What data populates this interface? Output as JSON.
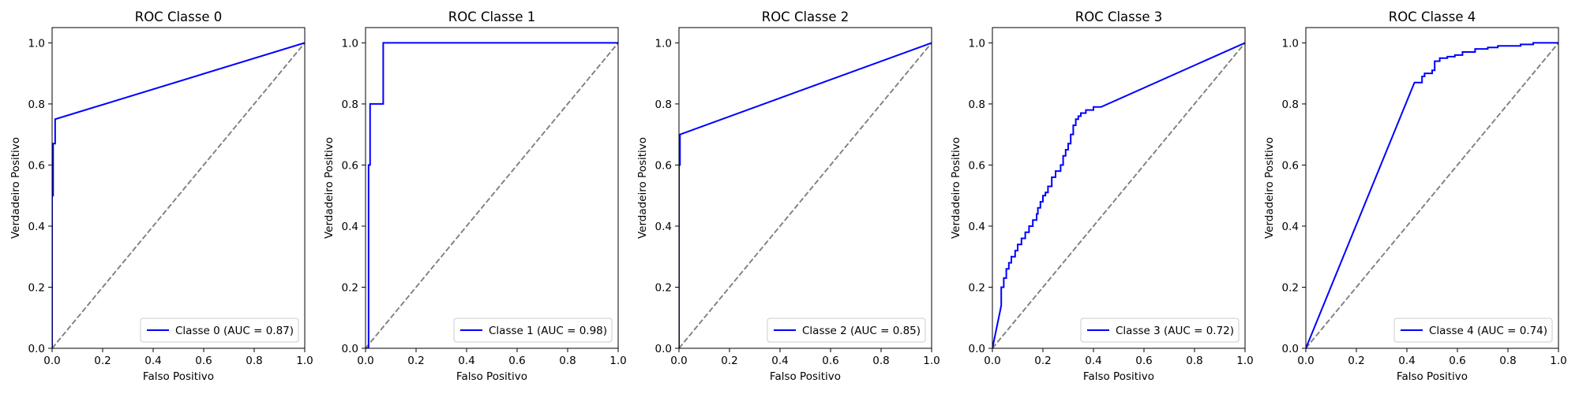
{
  "chart_data": [
    {
      "type": "line",
      "title": "ROC Classe 0",
      "xlabel": "Falso Positivo",
      "ylabel": "Verdadeiro Positivo",
      "xlim": [
        0,
        1
      ],
      "ylim": [
        0,
        1.05
      ],
      "xticks": [
        "0.0",
        "0.2",
        "0.4",
        "0.6",
        "0.8",
        "1.0"
      ],
      "yticks": [
        "0.0",
        "0.2",
        "0.4",
        "0.6",
        "0.8",
        "1.0"
      ],
      "grid": false,
      "legend_position": "lower-right",
      "series": [
        {
          "name": "Classe 0 (AUC = 0.87)",
          "color": "#0000ff",
          "x": [
            0.0,
            0.0,
            0.004,
            0.004,
            0.012,
            0.012,
            1.0
          ],
          "y": [
            0.0,
            0.5,
            0.5,
            0.67,
            0.67,
            0.75,
            1.0
          ]
        },
        {
          "name": "",
          "color": "#808080",
          "style": "dashed",
          "x": [
            0,
            1
          ],
          "y": [
            0,
            1
          ]
        }
      ]
    },
    {
      "type": "line",
      "title": "ROC Classe 1",
      "xlabel": "Falso Positivo",
      "ylabel": "Verdadeiro Positivo",
      "xlim": [
        0,
        1
      ],
      "ylim": [
        0,
        1.05
      ],
      "xticks": [
        "0.0",
        "0.2",
        "0.4",
        "0.6",
        "0.8",
        "1.0"
      ],
      "yticks": [
        "0.0",
        "0.2",
        "0.4",
        "0.6",
        "0.8",
        "1.0"
      ],
      "grid": false,
      "legend_position": "lower-right",
      "series": [
        {
          "name": "Classe 1 (AUC = 0.98)",
          "color": "#0000ff",
          "x": [
            0.0,
            0.0,
            0.012,
            0.012,
            0.018,
            0.018,
            0.07,
            0.07,
            1.0
          ],
          "y": [
            0.0,
            0.0,
            0.0,
            0.6,
            0.6,
            0.8,
            0.8,
            1.0,
            1.0
          ]
        },
        {
          "name": "",
          "color": "#808080",
          "style": "dashed",
          "x": [
            0,
            1
          ],
          "y": [
            0,
            1
          ]
        }
      ]
    },
    {
      "type": "line",
      "title": "ROC Classe 2",
      "xlabel": "Falso Positivo",
      "ylabel": "Verdadeiro Positivo",
      "xlim": [
        0,
        1
      ],
      "ylim": [
        0,
        1.05
      ],
      "xticks": [
        "0.0",
        "0.2",
        "0.4",
        "0.6",
        "0.8",
        "1.0"
      ],
      "yticks": [
        "0.0",
        "0.2",
        "0.4",
        "0.6",
        "0.8",
        "1.0"
      ],
      "grid": false,
      "legend_position": "lower-right",
      "series": [
        {
          "name": "Classe 2 (AUC = 0.85)",
          "color": "#0000ff",
          "x": [
            0.0,
            0.0,
            0.004,
            0.004,
            1.0
          ],
          "y": [
            0.0,
            0.6,
            0.6,
            0.7,
            1.0
          ]
        },
        {
          "name": "",
          "color": "#808080",
          "style": "dashed",
          "x": [
            0,
            1
          ],
          "y": [
            0,
            1
          ]
        }
      ]
    },
    {
      "type": "line",
      "title": "ROC Classe 3",
      "xlabel": "Falso Positivo",
      "ylabel": "Verdadeiro Positivo",
      "xlim": [
        0,
        1
      ],
      "ylim": [
        0,
        1.05
      ],
      "xticks": [
        "0.0",
        "0.2",
        "0.4",
        "0.6",
        "0.8",
        "1.0"
      ],
      "yticks": [
        "0.0",
        "0.2",
        "0.4",
        "0.6",
        "0.8",
        "1.0"
      ],
      "grid": false,
      "legend_position": "lower-right",
      "series": [
        {
          "name": "Classe 3 (AUC = 0.72)",
          "color": "#0000ff",
          "x": [
            0.0,
            0.035,
            0.035,
            0.045,
            0.045,
            0.055,
            0.055,
            0.065,
            0.065,
            0.075,
            0.075,
            0.09,
            0.09,
            0.1,
            0.1,
            0.115,
            0.115,
            0.13,
            0.13,
            0.145,
            0.145,
            0.16,
            0.16,
            0.175,
            0.175,
            0.18,
            0.18,
            0.19,
            0.19,
            0.2,
            0.2,
            0.21,
            0.21,
            0.22,
            0.22,
            0.235,
            0.235,
            0.25,
            0.25,
            0.27,
            0.27,
            0.28,
            0.28,
            0.29,
            0.29,
            0.3,
            0.3,
            0.31,
            0.31,
            0.32,
            0.32,
            0.33,
            0.33,
            0.34,
            0.34,
            0.35,
            0.35,
            0.37,
            0.37,
            0.4,
            0.4,
            0.43,
            0.43,
            1.0
          ],
          "y": [
            0.0,
            0.14,
            0.2,
            0.2,
            0.23,
            0.23,
            0.26,
            0.26,
            0.28,
            0.28,
            0.3,
            0.3,
            0.32,
            0.32,
            0.34,
            0.34,
            0.36,
            0.36,
            0.38,
            0.38,
            0.4,
            0.4,
            0.42,
            0.42,
            0.44,
            0.44,
            0.46,
            0.46,
            0.48,
            0.48,
            0.5,
            0.5,
            0.51,
            0.51,
            0.53,
            0.53,
            0.56,
            0.56,
            0.58,
            0.58,
            0.6,
            0.6,
            0.63,
            0.63,
            0.65,
            0.65,
            0.67,
            0.67,
            0.7,
            0.7,
            0.73,
            0.73,
            0.75,
            0.75,
            0.76,
            0.76,
            0.77,
            0.77,
            0.78,
            0.78,
            0.79,
            0.79,
            0.79,
            1.0
          ]
        },
        {
          "name": "",
          "color": "#808080",
          "style": "dashed",
          "x": [
            0,
            1
          ],
          "y": [
            0,
            1
          ]
        }
      ]
    },
    {
      "type": "line",
      "title": "ROC Classe 4",
      "xlabel": "Falso Positivo",
      "ylabel": "Verdadeiro Positivo",
      "xlim": [
        0,
        1
      ],
      "ylim": [
        0,
        1.05
      ],
      "xticks": [
        "0.0",
        "0.2",
        "0.4",
        "0.6",
        "0.8",
        "1.0"
      ],
      "yticks": [
        "0.0",
        "0.2",
        "0.4",
        "0.6",
        "0.8",
        "1.0"
      ],
      "grid": false,
      "legend_position": "lower-right",
      "series": [
        {
          "name": "Classe 4 (AUC = 0.74)",
          "color": "#0000ff",
          "x": [
            0.0,
            0.43,
            0.43,
            0.46,
            0.46,
            0.47,
            0.47,
            0.5,
            0.5,
            0.51,
            0.51,
            0.53,
            0.53,
            0.56,
            0.56,
            0.59,
            0.59,
            0.62,
            0.62,
            0.67,
            0.67,
            0.72,
            0.72,
            0.76,
            0.76,
            0.8,
            0.8,
            0.85,
            0.85,
            0.9,
            0.9,
            0.96,
            0.96,
            1.0
          ],
          "y": [
            0.0,
            0.87,
            0.87,
            0.87,
            0.89,
            0.89,
            0.9,
            0.9,
            0.91,
            0.91,
            0.94,
            0.94,
            0.95,
            0.95,
            0.955,
            0.955,
            0.96,
            0.96,
            0.97,
            0.97,
            0.98,
            0.98,
            0.985,
            0.985,
            0.99,
            0.99,
            0.99,
            0.99,
            0.995,
            0.995,
            1.0,
            1.0,
            1.0,
            1.0
          ]
        },
        {
          "name": "",
          "color": "#808080",
          "style": "dashed",
          "x": [
            0,
            1
          ],
          "y": [
            0,
            1
          ]
        }
      ]
    }
  ]
}
